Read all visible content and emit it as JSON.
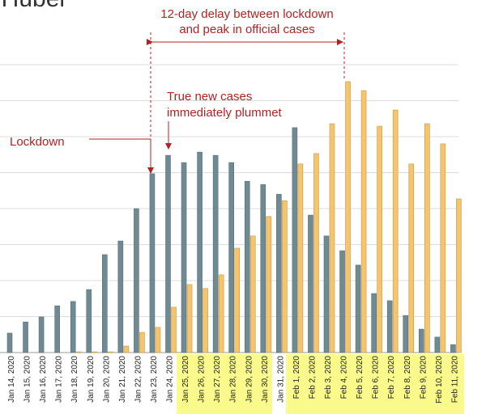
{
  "chart_data": {
    "type": "bar",
    "title": "in Hubei",
    "categories": [
      "Jan 14, 2020",
      "Jan 15, 2020",
      "Jan 16, 2020",
      "Jan 17, 2020",
      "Jan 18, 2020",
      "Jan 19, 2020",
      "Jan 20, 2020",
      "Jan 21, 2020",
      "Jan 22, 2020",
      "Jan 23, 2020",
      "Jan 24, 2020",
      "Jan 25, 2020",
      "Jan 26, 2020",
      "Jan 27, 2020",
      "Jan 28, 2020",
      "Jan 29, 2020",
      "Jan 30, 2020",
      "Jan 31, 2020",
      "Feb 1, 2020",
      "Feb 2, 2020",
      "Feb 3, 2020",
      "Feb 4, 2020",
      "Feb 5, 2020",
      "Feb 6, 2020",
      "Feb 7, 2020",
      "Feb 8, 2020",
      "Feb 9, 2020",
      "Feb 10, 2020",
      "Feb 11, 2020"
    ],
    "series": [
      {
        "color": "#6f8a93",
        "values": [
          0.54,
          0.85,
          0.99,
          1.3,
          1.42,
          1.75,
          2.72,
          3.1,
          4.0,
          4.97,
          5.48,
          5.28,
          5.57,
          5.48,
          5.28,
          4.76,
          4.67,
          4.4,
          6.25,
          3.82,
          3.24,
          2.83,
          2.43,
          1.64,
          1.44,
          1.03,
          0.65,
          0.43,
          0.22
        ]
      },
      {
        "color": "#f4c46e",
        "values": [
          0,
          0,
          0,
          0,
          0.02,
          0.02,
          0.02,
          0.18,
          0.56,
          0.7,
          1.26,
          1.89,
          1.78,
          2.16,
          2.9,
          3.24,
          3.78,
          4.22,
          5.24,
          5.53,
          6.36,
          7.53,
          7.28,
          6.29,
          6.74,
          5.24,
          6.36,
          5.8,
          4.27
        ]
      }
    ],
    "ylim": [
      0,
      8
    ],
    "grid_lines": [
      1,
      2,
      3,
      4,
      5,
      6,
      7,
      8
    ],
    "annotations": {
      "delay": [
        "12-day delay between lockdown",
        "and peak in official cases"
      ],
      "plummet": [
        "True new cases",
        "immediately plummet"
      ],
      "lockdown": "Lockdown"
    }
  }
}
